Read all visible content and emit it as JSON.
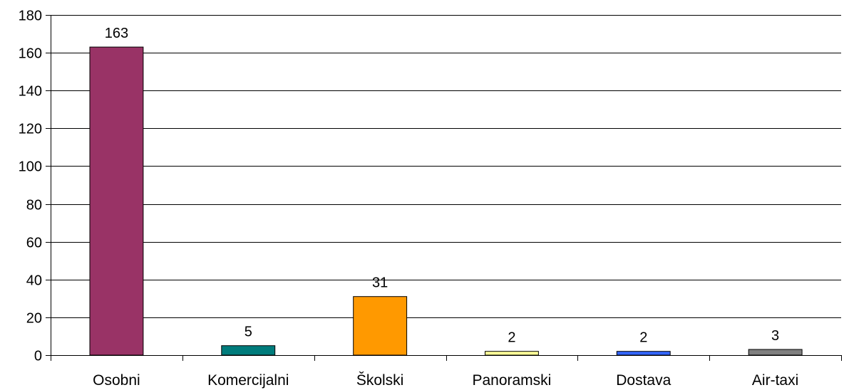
{
  "chart_data": {
    "type": "bar",
    "categories": [
      "Osobni",
      "Komercijalni",
      "Školski",
      "Panoramski",
      "Dostava",
      "Air-taxi"
    ],
    "values": [
      163,
      5,
      31,
      2,
      2,
      3
    ],
    "colors": [
      "#993366",
      "#007C7C",
      "#FF9900",
      "#FFFF99",
      "#3366FF",
      "#808080"
    ],
    "data_labels": [
      "163",
      "5",
      "31",
      "2",
      "2",
      "3"
    ],
    "title": "",
    "xlabel": "",
    "ylabel": "",
    "ylim": [
      0,
      180
    ],
    "y_ticks": [
      0,
      20,
      40,
      60,
      80,
      100,
      120,
      140,
      160,
      180
    ],
    "y_tick_labels": [
      "0",
      "20",
      "40",
      "60",
      "80",
      "100",
      "120",
      "140",
      "160",
      "180"
    ],
    "grid": true,
    "legend": "none"
  }
}
